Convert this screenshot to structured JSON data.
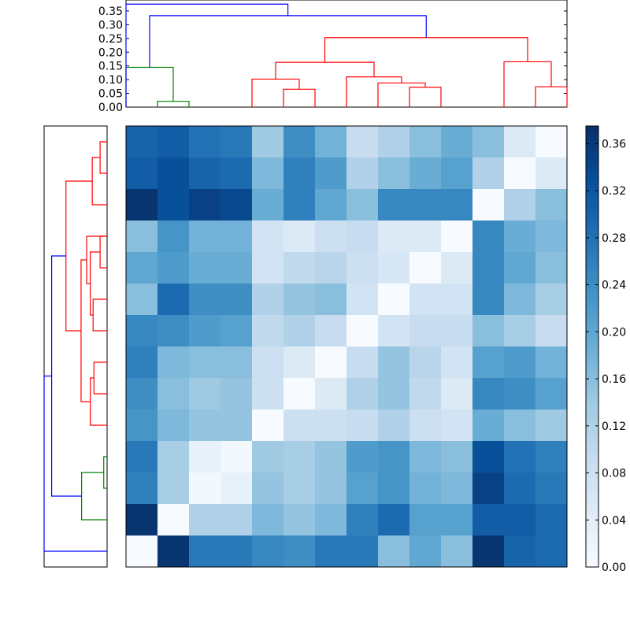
{
  "chart_data": [
    {
      "type": "dendrogram",
      "orientation": "top",
      "ylim": [
        0,
        0.39
      ],
      "yticks": [
        "0.00",
        "0.05",
        "0.10",
        "0.15",
        "0.20",
        "0.25",
        "0.30",
        "0.35"
      ],
      "leaf_count": 14,
      "link_colors": {
        "root": "blue",
        "cluster_a": "green",
        "cluster_b": "red"
      },
      "links": [
        {
          "leaves": [
            11,
            12
          ],
          "left_x": 12.5,
          "right_x": 13.5,
          "height": 0.074,
          "color": "#ff0000"
        },
        {
          "leaves": [
            10,
            11,
            12
          ],
          "left_x": 11.5,
          "right_x": 13.0,
          "height": 0.165,
          "color": "#ff0000"
        },
        {
          "leaves": [
            7,
            8
          ],
          "left_x": 7.5,
          "right_x": 8.5,
          "height": 0.072,
          "color": "#ff0000"
        },
        {
          "leaves": [
            6,
            7,
            8
          ],
          "left_x": 6.5,
          "right_x": 8.0,
          "height": 0.088,
          "color": "#ff0000"
        },
        {
          "leaves": [
            5,
            6,
            7,
            8
          ],
          "left_x": 5.5,
          "right_x": 7.25,
          "height": 0.11,
          "color": "#ff0000"
        },
        {
          "leaves": [
            3,
            4
          ],
          "left_x": 3.5,
          "right_x": 4.5,
          "height": 0.065,
          "color": "#ff0000"
        },
        {
          "leaves": [
            2,
            3,
            4
          ],
          "left_x": 2.5,
          "right_x": 4.0,
          "height": 0.102,
          "color": "#ff0000"
        },
        {
          "leaves": [
            2,
            3,
            4,
            5,
            6,
            7,
            8
          ],
          "left_x": 3.25,
          "right_x": 6.375,
          "height": 0.163,
          "color": "#ff0000"
        },
        {
          "leaves": [
            2,
            3,
            4,
            5,
            6,
            7,
            8,
            10,
            11,
            12
          ],
          "left_x": 4.8125,
          "right_x": 12.25,
          "height": 0.253,
          "color": "#ff0000"
        },
        {
          "leaves": [
            12,
            13
          ],
          "left_x": 1.5,
          "right_x": 0.0,
          "height": 0.021,
          "color": "#008000"
        },
        {
          "leaves": [
            0,
            1
          ],
          "left_x": 0.5,
          "right_x": 1.25,
          "height": 0.145,
          "color": "#008000"
        },
        {
          "leaves": [
            0,
            1,
            2,
            3,
            4,
            5,
            6,
            7,
            8,
            10,
            11,
            12
          ],
          "left_x": 0.875,
          "right_x": 8.53125,
          "height": 0.333,
          "color": "#0000ff"
        },
        {
          "leaves": [
            "all"
          ],
          "left_x": 0.0,
          "right_x": 4.703,
          "height": 0.375,
          "color": "#0000ff"
        }
      ]
    },
    {
      "type": "dendrogram",
      "orientation": "left",
      "leaf_count": 14,
      "links": [
        {
          "a": 0.5,
          "b": 1.5,
          "height": 0.025,
          "color": "#ff0000"
        },
        {
          "a": 1.0,
          "b": 2.5,
          "height": 0.053,
          "color": "#ff0000"
        },
        {
          "a": 3.5,
          "b": 4.5,
          "height": 0.025,
          "color": "#ff0000"
        },
        {
          "a": 5.5,
          "b": 6.5,
          "height": 0.05,
          "color": "#ff0000"
        },
        {
          "a": 4.0,
          "b": 6.0,
          "height": 0.06,
          "color": "#ff0000"
        },
        {
          "a": 3.5,
          "b": 5.0,
          "height": 0.073,
          "color": "#ff0000"
        },
        {
          "a": 7.5,
          "b": 8.5,
          "height": 0.047,
          "color": "#ff0000"
        },
        {
          "a": 8.0,
          "b": 9.5,
          "height": 0.06,
          "color": "#ff0000"
        },
        {
          "a": 4.25,
          "b": 8.75,
          "height": 0.093,
          "color": "#ff0000"
        },
        {
          "a": 1.75,
          "b": 6.5,
          "height": 0.147,
          "color": "#ff0000"
        },
        {
          "a": 10.5,
          "b": 11.5,
          "height": 0.012,
          "color": "#008000"
        },
        {
          "a": 11.0,
          "b": 12.5,
          "height": 0.091,
          "color": "#008000"
        },
        {
          "a": 4.125,
          "b": 11.75,
          "height": 0.198,
          "color": "#0000ff"
        },
        {
          "a": 7.9375,
          "b": 13.5,
          "height": 0.225,
          "color": "#0000ff"
        }
      ],
      "xlim": [
        0,
        0.225
      ]
    },
    {
      "type": "heatmap",
      "rows": 14,
      "cols": 14,
      "colormap": "Blues",
      "vmin": 0.0,
      "vmax": 0.375,
      "colorbar_ticks": [
        "0.00",
        "0.04",
        "0.08",
        "0.12",
        "0.16",
        "0.20",
        "0.24",
        "0.28",
        "0.32",
        "0.36"
      ],
      "values": [
        [
          0.3,
          0.31,
          0.28,
          0.27,
          0.14,
          0.24,
          0.18,
          0.09,
          0.12,
          0.16,
          0.19,
          0.16,
          0.05,
          0.0
        ],
        [
          0.31,
          0.33,
          0.3,
          0.29,
          0.17,
          0.26,
          0.22,
          0.12,
          0.16,
          0.19,
          0.21,
          0.12,
          0.0,
          0.05
        ],
        [
          0.37,
          0.33,
          0.35,
          0.34,
          0.19,
          0.26,
          0.2,
          0.16,
          0.25,
          0.25,
          0.25,
          0.0,
          0.12,
          0.16
        ],
        [
          0.16,
          0.23,
          0.18,
          0.18,
          0.07,
          0.05,
          0.08,
          0.09,
          0.05,
          0.05,
          0.0,
          0.25,
          0.19,
          0.17
        ],
        [
          0.2,
          0.22,
          0.19,
          0.19,
          0.07,
          0.1,
          0.11,
          0.08,
          0.06,
          0.0,
          0.05,
          0.25,
          0.2,
          0.16
        ],
        [
          0.16,
          0.29,
          0.24,
          0.24,
          0.12,
          0.15,
          0.16,
          0.07,
          0.0,
          0.07,
          0.07,
          0.25,
          0.17,
          0.13
        ],
        [
          0.25,
          0.24,
          0.22,
          0.21,
          0.1,
          0.12,
          0.09,
          0.0,
          0.07,
          0.09,
          0.09,
          0.16,
          0.13,
          0.09
        ],
        [
          0.26,
          0.17,
          0.16,
          0.16,
          0.08,
          0.05,
          0.0,
          0.09,
          0.15,
          0.11,
          0.07,
          0.21,
          0.22,
          0.18
        ],
        [
          0.24,
          0.16,
          0.14,
          0.15,
          0.08,
          0.0,
          0.05,
          0.12,
          0.15,
          0.1,
          0.05,
          0.25,
          0.24,
          0.21
        ],
        [
          0.23,
          0.17,
          0.15,
          0.15,
          0.0,
          0.08,
          0.08,
          0.09,
          0.12,
          0.08,
          0.07,
          0.19,
          0.16,
          0.14
        ],
        [
          0.27,
          0.13,
          0.03,
          0.01,
          0.14,
          0.13,
          0.15,
          0.22,
          0.23,
          0.17,
          0.16,
          0.33,
          0.28,
          0.26
        ],
        [
          0.26,
          0.13,
          0.01,
          0.03,
          0.15,
          0.13,
          0.15,
          0.21,
          0.23,
          0.18,
          0.17,
          0.35,
          0.29,
          0.27
        ],
        [
          0.37,
          0.0,
          0.12,
          0.12,
          0.17,
          0.15,
          0.17,
          0.26,
          0.29,
          0.21,
          0.21,
          0.31,
          0.31,
          0.29
        ],
        [
          0.0,
          0.37,
          0.27,
          0.27,
          0.25,
          0.24,
          0.27,
          0.27,
          0.16,
          0.2,
          0.16,
          0.37,
          0.3,
          0.29
        ]
      ]
    }
  ]
}
